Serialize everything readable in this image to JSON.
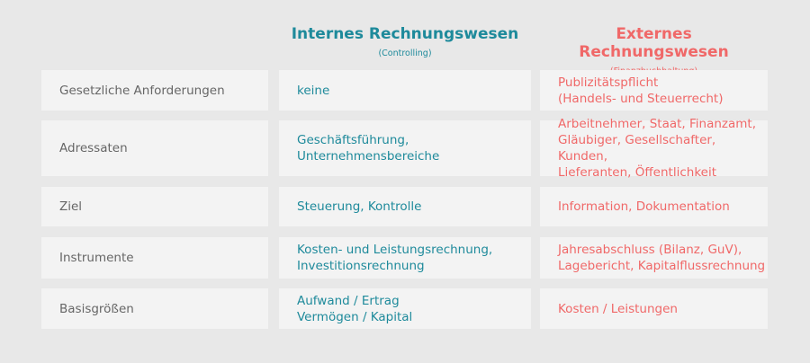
{
  "headers": [
    {
      "title": "Internes Rechnungswesen",
      "subtitle": "(Controlling)"
    },
    {
      "title": "Externes Rechnungswesen",
      "subtitle": "(Finanzbuchhaltung)"
    }
  ],
  "colors": {
    "internal": "#1e8a9b",
    "external": "#f06868",
    "label": "#666666",
    "cell": "#f3f3f3",
    "background": "#e8e8e8"
  },
  "rows": [
    {
      "label": "Gesetzliche Anforderungen",
      "internal": "keine",
      "external": "Publizitätspflicht\n(Handels- und Steuerrecht)"
    },
    {
      "label": "Adressaten",
      "internal": "Geschäftsführung,\nUnternehmensbereiche",
      "external": "Arbeitnehmer, Staat, Finanzamt,\nGläubiger, Gesellschafter, Kunden,\nLieferanten, Öffentlichkeit"
    },
    {
      "label": "Ziel",
      "internal": "Steuerung, Kontrolle",
      "external": "Information, Dokumentation"
    },
    {
      "label": "Instrumente",
      "internal": "Kosten- und Leistungsrechnung,\nInvestitionsrechnung",
      "external": "Jahresabschluss (Bilanz, GuV),\nLagebericht, Kapitalflussrechnung"
    },
    {
      "label": "Basisgrößen",
      "internal": "Aufwand / Ertrag\nVermögen / Kapital",
      "external": "Kosten / Leistungen"
    }
  ]
}
